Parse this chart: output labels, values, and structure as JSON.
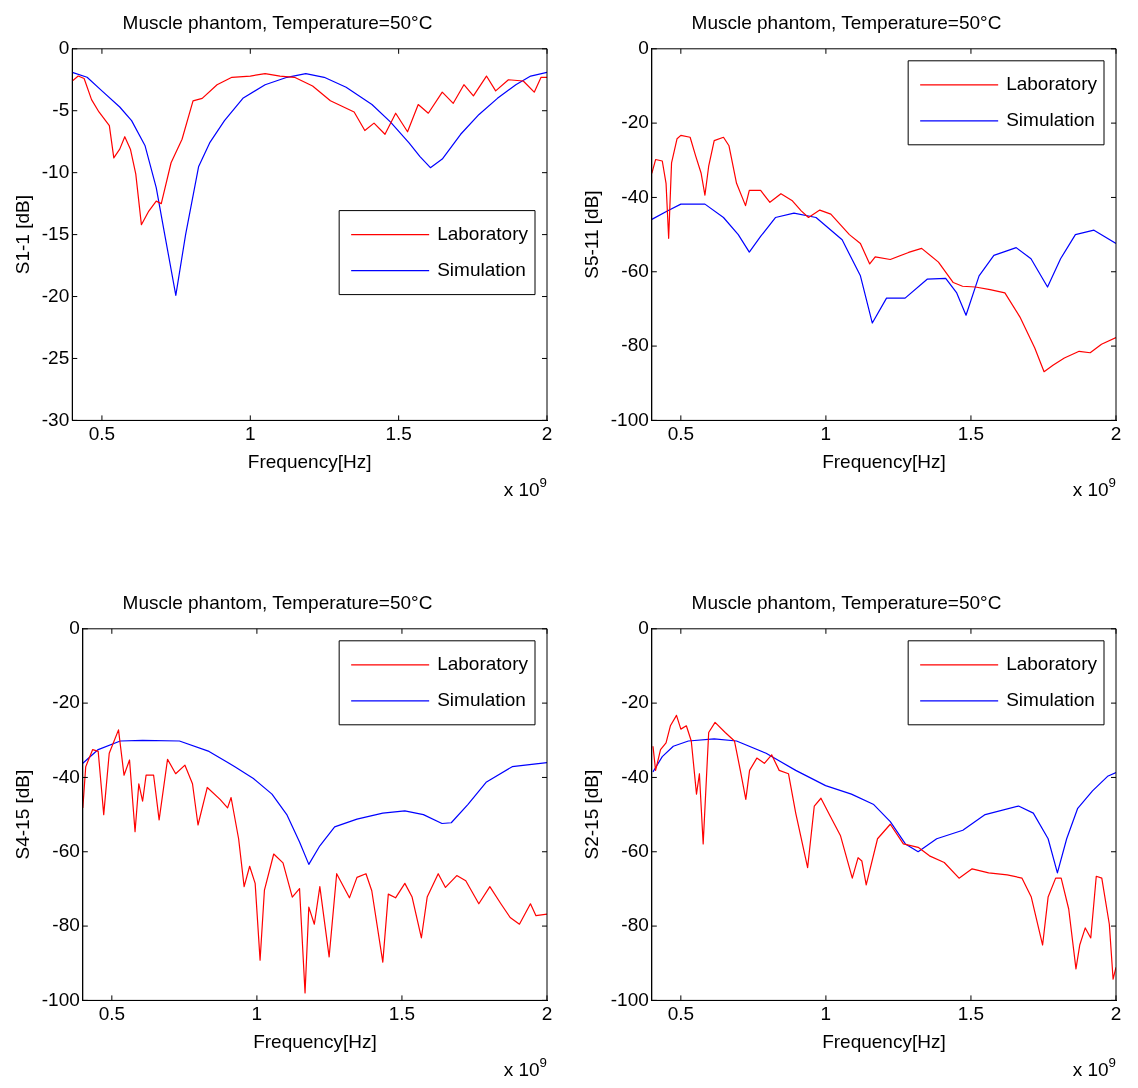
{
  "chart_data": [
    {
      "type": "line",
      "title": "Muscle phantom, Temperature=50°C",
      "xlabel": "Frequency[Hz]",
      "ylabel": "S1-1 [dB]",
      "annotations": [
        "x 10$^{9}$"
      ],
      "xlim": [
        0.4,
        2
      ],
      "xticks": [
        0.5,
        1,
        1.5,
        2
      ],
      "ylim": [
        -30,
        0
      ],
      "yticks": [
        -30,
        -25,
        -20,
        -15,
        -10,
        -5,
        0
      ],
      "legend": "right",
      "series": [
        {
          "name": "Laboratory",
          "color": "#ff0000",
          "x": [
            0.4,
            0.42,
            0.44,
            0.465,
            0.49,
            0.525,
            0.54,
            0.56,
            0.577,
            0.596,
            0.614,
            0.633,
            0.658,
            0.683,
            0.7,
            0.733,
            0.77,
            0.807,
            0.838,
            0.888,
            0.938,
            1.0,
            1.05,
            1.1,
            1.149,
            1.21,
            1.27,
            1.35,
            1.386,
            1.417,
            1.454,
            1.49,
            1.53,
            1.566,
            1.6,
            1.647,
            1.684,
            1.72,
            1.752,
            1.796,
            1.827,
            1.87,
            1.92,
            1.957,
            1.98,
            2.0
          ],
          "values": [
            -2.6,
            -2.2,
            -2.4,
            -4.1,
            -5.1,
            -6.2,
            -8.8,
            -8.1,
            -7.1,
            -8.1,
            -10.1,
            -14.2,
            -13.1,
            -12.3,
            -12.5,
            -9.2,
            -7.3,
            -4.2,
            -4.0,
            -2.9,
            -2.3,
            -2.2,
            -2.0,
            -2.2,
            -2.3,
            -3.0,
            -4.2,
            -5.1,
            -6.6,
            -6.0,
            -6.9,
            -5.2,
            -6.7,
            -4.5,
            -5.2,
            -3.5,
            -4.4,
            -2.9,
            -3.8,
            -2.2,
            -3.4,
            -2.5,
            -2.6,
            -3.5,
            -2.3,
            -2.3
          ]
        },
        {
          "name": "Simulation",
          "color": "#0000ff",
          "x": [
            0.4,
            0.45,
            0.5,
            0.56,
            0.6,
            0.645,
            0.683,
            0.714,
            0.749,
            0.782,
            0.826,
            0.863,
            0.913,
            0.975,
            1.05,
            1.124,
            1.187,
            1.249,
            1.323,
            1.41,
            1.472,
            1.535,
            1.572,
            1.607,
            1.647,
            1.709,
            1.771,
            1.833,
            1.895,
            1.945,
            2.0
          ],
          "values": [
            -1.9,
            -2.3,
            -3.4,
            -4.7,
            -5.8,
            -7.8,
            -11.2,
            -15.3,
            -19.9,
            -15.0,
            -9.5,
            -7.6,
            -5.8,
            -4.0,
            -2.9,
            -2.3,
            -2.0,
            -2.3,
            -3.1,
            -4.5,
            -5.9,
            -7.6,
            -8.7,
            -9.6,
            -8.9,
            -6.9,
            -5.3,
            -4.0,
            -2.9,
            -2.2,
            -1.9
          ]
        }
      ]
    },
    {
      "type": "line",
      "title": "Muscle phantom, Temperature=50°C",
      "xlabel": "Frequency[Hz]",
      "ylabel": "S5-11 [dB]",
      "annotations": [
        "x 10$^{9}$"
      ],
      "xlim": [
        0.4,
        2
      ],
      "xticks": [
        0.5,
        1,
        1.5,
        2
      ],
      "ylim": [
        -100,
        0
      ],
      "yticks": [
        -100,
        -80,
        -60,
        -40,
        -20,
        0
      ],
      "legend": "top right",
      "series": [
        {
          "name": "Laboratory",
          "color": "#ff0000",
          "x": [
            0.4,
            0.413,
            0.436,
            0.449,
            0.458,
            0.468,
            0.487,
            0.5,
            0.532,
            0.551,
            0.57,
            0.583,
            0.596,
            0.615,
            0.647,
            0.666,
            0.692,
            0.723,
            0.736,
            0.775,
            0.807,
            0.845,
            0.883,
            0.915,
            0.94,
            0.979,
            1.017,
            1.081,
            1.119,
            1.151,
            1.17,
            1.222,
            1.285,
            1.33,
            1.388,
            1.439,
            1.471,
            1.515,
            1.566,
            1.617,
            1.669,
            1.72,
            1.752,
            1.784,
            1.822,
            1.873,
            1.911,
            1.95,
            2.0
          ],
          "values": [
            -33.5,
            -29.8,
            -30.2,
            -36.2,
            -51.0,
            -30.7,
            -24.2,
            -23.3,
            -23.8,
            -28.8,
            -33.5,
            -39.4,
            -31.6,
            -24.7,
            -23.8,
            -26.1,
            -36.2,
            -42.2,
            -38.1,
            -38.1,
            -41.3,
            -39.0,
            -40.8,
            -43.6,
            -45.4,
            -43.4,
            -44.5,
            -50.0,
            -52.4,
            -57.9,
            -56.0,
            -56.7,
            -54.8,
            -53.7,
            -57.4,
            -62.9,
            -63.9,
            -64.1,
            -64.8,
            -65.7,
            -72.2,
            -80.5,
            -86.9,
            -85.1,
            -83.2,
            -81.4,
            -81.8,
            -79.5,
            -77.7
          ]
        },
        {
          "name": "Simulation",
          "color": "#0000ff",
          "x": [
            0.4,
            0.455,
            0.5,
            0.583,
            0.647,
            0.698,
            0.736,
            0.775,
            0.826,
            0.89,
            0.966,
            1.056,
            1.119,
            1.16,
            1.209,
            1.273,
            1.349,
            1.413,
            1.451,
            1.483,
            1.528,
            1.579,
            1.656,
            1.707,
            1.764,
            1.809,
            1.86,
            1.924,
            2.0
          ],
          "values": [
            -45.9,
            -43.6,
            -41.8,
            -41.8,
            -45.4,
            -50.0,
            -54.7,
            -50.5,
            -45.4,
            -44.2,
            -45.4,
            -51.4,
            -61.1,
            -73.8,
            -67.1,
            -67.1,
            -62.0,
            -61.8,
            -65.7,
            -71.7,
            -61.1,
            -55.6,
            -53.5,
            -56.5,
            -64.1,
            -56.5,
            -50.0,
            -48.8,
            -52.4
          ]
        }
      ]
    },
    {
      "type": "line",
      "title": "Muscle phantom, Temperature=50°C",
      "xlabel": "Frequency[Hz]",
      "ylabel": "S4-15 [dB]",
      "annotations": [
        "x 10$^{9}$"
      ],
      "xlim": [
        0.4,
        2
      ],
      "xticks": [
        0.5,
        1,
        1.5,
        2
      ],
      "ylim": [
        -100,
        0
      ],
      "yticks": [
        -100,
        -80,
        -60,
        -40,
        -20,
        0
      ],
      "legend": "top right",
      "series": [
        {
          "name": "Laboratory",
          "color": "#ff0000",
          "x": [
            0.4,
            0.41,
            0.434,
            0.453,
            0.472,
            0.491,
            0.523,
            0.542,
            0.561,
            0.58,
            0.593,
            0.606,
            0.618,
            0.644,
            0.663,
            0.692,
            0.72,
            0.752,
            0.778,
            0.797,
            0.829,
            0.873,
            0.899,
            0.911,
            0.937,
            0.956,
            0.975,
            0.994,
            1.011,
            1.026,
            1.058,
            1.09,
            1.122,
            1.147,
            1.166,
            1.179,
            1.198,
            1.217,
            1.249,
            1.275,
            1.319,
            1.345,
            1.376,
            1.396,
            1.434,
            1.453,
            1.478,
            1.51,
            1.535,
            1.567,
            1.587,
            1.625,
            1.65,
            1.689,
            1.72,
            1.765,
            1.803,
            1.841,
            1.873,
            1.905,
            1.943,
            1.962,
            2.0
          ],
          "values": [
            -48.2,
            -37.1,
            -32.5,
            -33.0,
            -50.0,
            -33.5,
            -27.2,
            -39.4,
            -35.3,
            -54.6,
            -41.7,
            -46.4,
            -39.4,
            -39.4,
            -51.4,
            -35.1,
            -39.0,
            -36.7,
            -41.7,
            -52.8,
            -42.7,
            -45.9,
            -48.2,
            -45.4,
            -56.5,
            -69.4,
            -63.9,
            -68.5,
            -89.2,
            -70.3,
            -60.6,
            -63.0,
            -72.2,
            -69.9,
            -98.0,
            -74.9,
            -79.5,
            -69.4,
            -88.3,
            -65.9,
            -72.4,
            -66.9,
            -65.9,
            -70.5,
            -89.7,
            -71.4,
            -72.4,
            -68.5,
            -72.2,
            -83.2,
            -72.2,
            -65.9,
            -69.6,
            -66.4,
            -67.8,
            -74.0,
            -69.4,
            -74.0,
            -77.7,
            -79.5,
            -74.0,
            -77.2,
            -76.8
          ]
        },
        {
          "name": "Simulation",
          "color": "#0000ff",
          "x": [
            0.4,
            0.453,
            0.529,
            0.606,
            0.733,
            0.835,
            0.924,
            0.988,
            1.052,
            1.103,
            1.147,
            1.179,
            1.217,
            1.268,
            1.345,
            1.434,
            1.51,
            1.574,
            1.638,
            1.67,
            1.727,
            1.79,
            1.88,
            2.0
          ],
          "values": [
            -36.2,
            -32.5,
            -30.2,
            -30.0,
            -30.2,
            -33.0,
            -37.1,
            -40.3,
            -44.5,
            -50.0,
            -57.4,
            -63.4,
            -58.4,
            -53.3,
            -51.2,
            -49.6,
            -49.0,
            -50.0,
            -52.4,
            -52.2,
            -47.3,
            -41.3,
            -37.1,
            -36.0
          ]
        }
      ]
    },
    {
      "type": "line",
      "title": "Muscle phantom, Temperature=50°C",
      "xlabel": "Frequency[Hz]",
      "ylabel": "S2-15 [dB]",
      "annotations": [
        "x 10$^{9}$"
      ],
      "xlim": [
        0.4,
        2
      ],
      "xticks": [
        0.5,
        1,
        1.5,
        2
      ],
      "ylim": [
        -100,
        0
      ],
      "yticks": [
        -100,
        -80,
        -60,
        -40,
        -20,
        0
      ],
      "legend": "top right",
      "series": [
        {
          "name": "Laboratory",
          "color": "#ff0000",
          "x": [
            0.404,
            0.413,
            0.43,
            0.449,
            0.464,
            0.485,
            0.5,
            0.519,
            0.536,
            0.554,
            0.564,
            0.577,
            0.596,
            0.618,
            0.653,
            0.685,
            0.705,
            0.724,
            0.737,
            0.762,
            0.788,
            0.813,
            0.839,
            0.871,
            0.896,
            0.937,
            0.96,
            0.983,
            1.012,
            1.05,
            1.091,
            1.111,
            1.124,
            1.139,
            1.178,
            1.222,
            1.267,
            1.318,
            1.357,
            1.408,
            1.459,
            1.504,
            1.561,
            1.625,
            1.676,
            1.708,
            1.747,
            1.766,
            1.792,
            1.811,
            1.837,
            1.862,
            1.875,
            1.894,
            1.913,
            1.932,
            1.951,
            1.977,
            1.99,
            2.0
          ],
          "values": [
            -31.6,
            -38.1,
            -32.5,
            -30.7,
            -26.1,
            -23.3,
            -27.0,
            -26.1,
            -30.2,
            -44.5,
            -39.0,
            -57.9,
            -27.9,
            -25.2,
            -27.9,
            -30.2,
            -38.1,
            -45.9,
            -38.1,
            -34.8,
            -36.2,
            -33.9,
            -38.1,
            -39.0,
            -49.6,
            -64.3,
            -47.7,
            -45.6,
            -50.0,
            -55.6,
            -67.1,
            -61.6,
            -62.5,
            -68.9,
            -56.5,
            -52.6,
            -57.9,
            -58.8,
            -61.1,
            -62.9,
            -67.1,
            -64.6,
            -65.7,
            -66.2,
            -67.1,
            -72.2,
            -85.1,
            -72.2,
            -67.1,
            -67.1,
            -75.4,
            -91.5,
            -85.1,
            -80.5,
            -83.2,
            -66.6,
            -67.1,
            -79.5,
            -94.3,
            -91.1
          ]
        },
        {
          "name": "Simulation",
          "color": "#0000ff",
          "x": [
            0.404,
            0.436,
            0.474,
            0.526,
            0.615,
            0.692,
            0.794,
            0.896,
            0.999,
            1.088,
            1.165,
            1.222,
            1.274,
            1.318,
            1.382,
            1.472,
            1.549,
            1.664,
            1.715,
            1.766,
            1.798,
            1.83,
            1.868,
            1.919,
            1.971,
            2.0
          ],
          "values": [
            -38.5,
            -34.4,
            -31.6,
            -30.2,
            -29.6,
            -30.2,
            -33.5,
            -38.1,
            -42.2,
            -44.5,
            -47.3,
            -51.9,
            -57.9,
            -60.0,
            -56.5,
            -54.2,
            -50.0,
            -47.7,
            -49.6,
            -56.5,
            -65.7,
            -56.5,
            -48.3,
            -43.6,
            -39.7,
            -38.7
          ]
        }
      ]
    }
  ]
}
